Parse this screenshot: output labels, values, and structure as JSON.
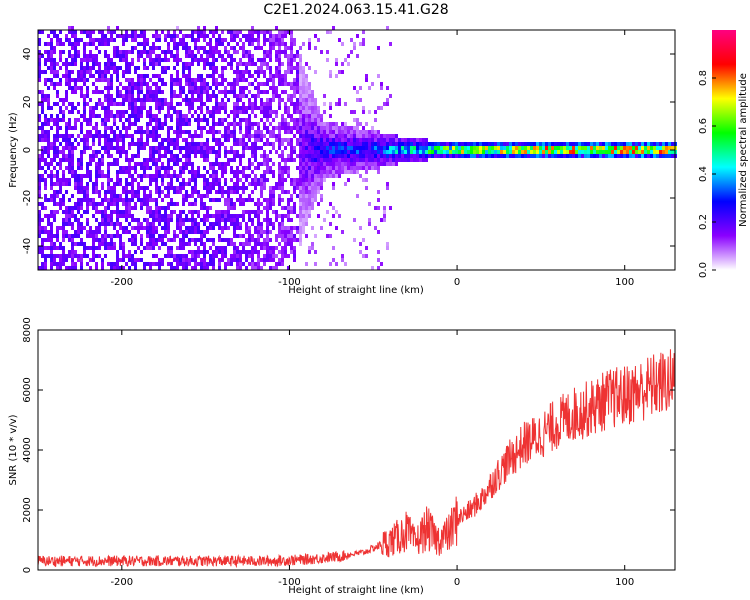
{
  "title": "C2E1.2024.063.15.41.G28",
  "chart_data": [
    {
      "type": "heatmap",
      "xlabel": "Height of straight line (km)",
      "ylabel": "Frequency (Hz)",
      "xlim": [
        -250,
        130
      ],
      "ylim": [
        -50,
        50
      ],
      "xticks": [
        -200,
        -100,
        0,
        100
      ],
      "yticks": [
        -40,
        -20,
        0,
        20,
        40
      ],
      "colorbar": {
        "label": "Normalized spectral amplitude",
        "range": [
          0,
          1
        ],
        "ticks": [
          0.0,
          0.2,
          0.4,
          0.6,
          0.8
        ],
        "colormap": [
          "#ffffff",
          "#8a00ff",
          "#0000ff",
          "#00ffff",
          "#00ff00",
          "#ffff00",
          "#ff0000",
          "#ff0080"
        ]
      },
      "description_points": [
        {
          "height": -250,
          "energy_spread_hz": 50,
          "peak_amplitude": 0.2
        },
        {
          "height": -150,
          "energy_spread_hz": 50,
          "peak_amplitude": 0.2
        },
        {
          "height": -100,
          "energy_spread_hz": 50,
          "peak_amplitude": 0.15
        },
        {
          "height": -80,
          "energy_spread_hz": 12,
          "peak_amplitude": 0.3
        },
        {
          "height": -50,
          "energy_spread_hz": 8,
          "peak_amplitude": 0.35
        },
        {
          "height": -30,
          "energy_spread_hz": 5,
          "peak_amplitude": 0.5
        },
        {
          "height": 0,
          "energy_spread_hz": 3,
          "peak_amplitude": 0.8
        },
        {
          "height": 50,
          "energy_spread_hz": 3,
          "peak_amplitude": 0.9
        },
        {
          "height": 130,
          "energy_spread_hz": 3,
          "peak_amplitude": 0.9
        }
      ]
    },
    {
      "type": "line",
      "xlabel": "Height of straight line (km)",
      "ylabel": "SNR (10 * v/v)",
      "xlim": [
        -250,
        130
      ],
      "ylim": [
        0,
        8000
      ],
      "xticks": [
        -200,
        -100,
        0,
        100
      ],
      "yticks": [
        0,
        2000,
        4000,
        6000,
        8000
      ],
      "color": "#ee3333",
      "series": [
        {
          "x": [
            -250,
            -200,
            -150,
            -110,
            -90,
            -70,
            -55,
            -45,
            -38,
            -30,
            -25,
            -18,
            -12,
            -5,
            0,
            8,
            15,
            22,
            30,
            40,
            50,
            60,
            70,
            80,
            90,
            100,
            110,
            120,
            130
          ],
          "y": [
            300,
            300,
            300,
            300,
            350,
            450,
            600,
            850,
            1000,
            1300,
            900,
            1400,
            1000,
            1200,
            1700,
            2000,
            2400,
            3000,
            3600,
            4200,
            4500,
            4900,
            5200,
            5400,
            5700,
            5800,
            6000,
            6200,
            6300
          ]
        }
      ]
    }
  ]
}
